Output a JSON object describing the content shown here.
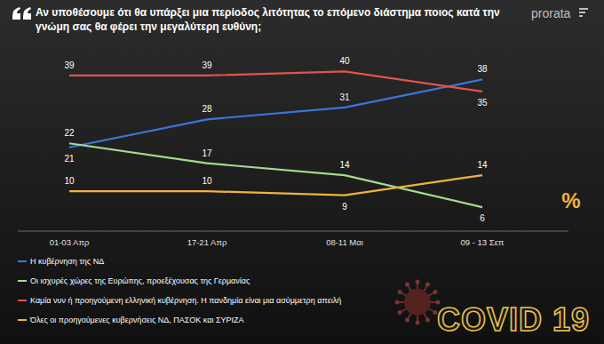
{
  "chart_data": {
    "type": "line",
    "title": "Αν υποθέσουμε ότι θα υπάρξει μια περίοδος λιτότητας το επόμενο διάστημα ποιος κατά την γνώμη σας θα φέρει την μεγαλύτερη ευθύνη;",
    "source": "prorata",
    "annotation": "%",
    "badge": "COVID 19",
    "categories": [
      "01-03 Απρ",
      "17-21 Απρ",
      "08-11 Μαι",
      "09 - 13 Σεπ"
    ],
    "series": [
      {
        "name": "Η κυβέρνηση της ΝΔ",
        "color": "#3d74dc",
        "values": [
          21,
          28,
          31,
          38
        ]
      },
      {
        "name": "Οι ισχυρές χώρες της Ευρώπης, προεξέχουσας της Γερμανίας",
        "color": "#a3dc8f",
        "values": [
          22,
          17,
          14,
          6
        ]
      },
      {
        "name": "Καμία νυν ή προηγούμενη ελληνική κυβέρνηση. Η πανδημία είναι μια ασύμμετρη απειλή",
        "color": "#e2534e",
        "values": [
          39,
          39,
          40,
          35
        ]
      },
      {
        "name": "Όλες οι προηγούμενες κυβερνήσεις ΝΔ, ΠΑΣΟΚ και ΣΥΡΙΖΑ",
        "color": "#f1b43a",
        "values": [
          10,
          10,
          9,
          14
        ]
      }
    ],
    "ylim": [
      0,
      45
    ],
    "data_labels": true,
    "tick_labels": "x",
    "legend": "bottom"
  }
}
